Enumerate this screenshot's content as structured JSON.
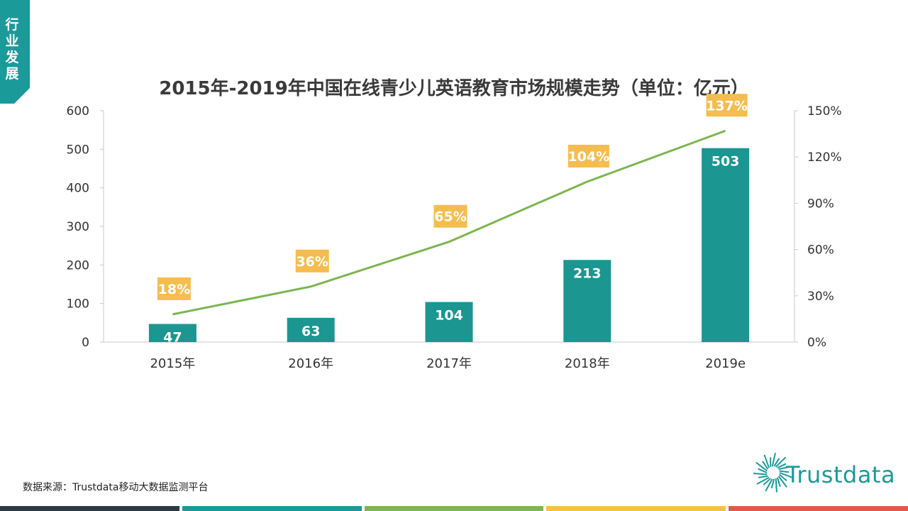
{
  "side_tab": {
    "label": "行业发展",
    "color": "#1b9a9a"
  },
  "title": "2015年-2019年中国在线青少儿英语教育市场规模走势（单位：亿元）",
  "source": "数据来源：Trustdata移动大数据监测平台",
  "logo": {
    "text": "Trustdata",
    "icon": "sunburst-icon",
    "color": "#1b9a9a"
  },
  "footer_colors": [
    "#2b3a44",
    "#1b9a9a",
    "#7cb84e",
    "#f5c242",
    "#e05a4a"
  ],
  "chart_data": {
    "type": "bar",
    "categories": [
      "2015年",
      "2016年",
      "2017年",
      "2018年",
      "2019e"
    ],
    "series": [
      {
        "values": [
          47,
          63,
          104,
          213,
          503
        ],
        "color": "#1b9691",
        "axis": "left",
        "kind": "bar"
      },
      {
        "values": [
          18,
          36,
          65,
          104,
          137
        ],
        "color": "#7cb550",
        "axis": "right",
        "kind": "line",
        "label_color": "#f5bd4f"
      }
    ],
    "y_left": {
      "min": 0,
      "max": 600,
      "ticks": [
        0,
        100,
        200,
        300,
        400,
        500,
        600
      ]
    },
    "y_right": {
      "min": 0,
      "max": 150,
      "ticks": [
        "0%",
        "30%",
        "60%",
        "90%",
        "120%",
        "150%"
      ]
    },
    "bar_labels": [
      "47",
      "63",
      "104",
      "213",
      "503"
    ],
    "line_labels": [
      "18%",
      "36%",
      "65%",
      "104%",
      "137%"
    ],
    "grid": false,
    "legend": "none"
  }
}
